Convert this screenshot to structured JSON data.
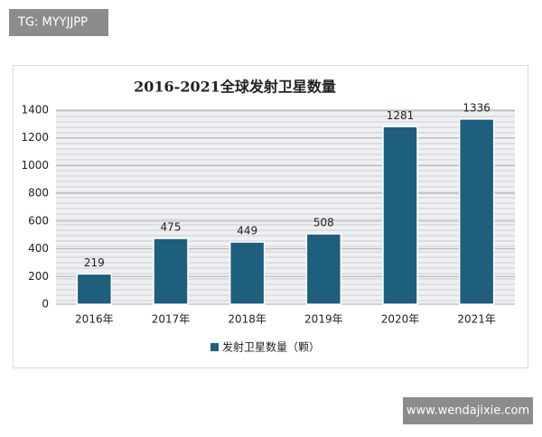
{
  "chart_data": {
    "type": "bar",
    "title": "2016-2021全球发射卫星数量",
    "categories": [
      "2016年",
      "2017年",
      "2018年",
      "2019年",
      "2020年",
      "2021年"
    ],
    "series": [
      {
        "name": "发射卫星数量（颗）",
        "color": "#1d5f7c",
        "values": [
          219,
          475,
          449,
          508,
          1281,
          1336
        ]
      }
    ],
    "ylim": [
      0,
      1400
    ],
    "yticks": [
      0,
      200,
      400,
      600,
      800,
      1000,
      1200,
      1400
    ],
    "grid": true,
    "legend": "bottom"
  },
  "watermarks": [
    "TG: MYYJJPP",
    "www.wendajixie.com"
  ]
}
